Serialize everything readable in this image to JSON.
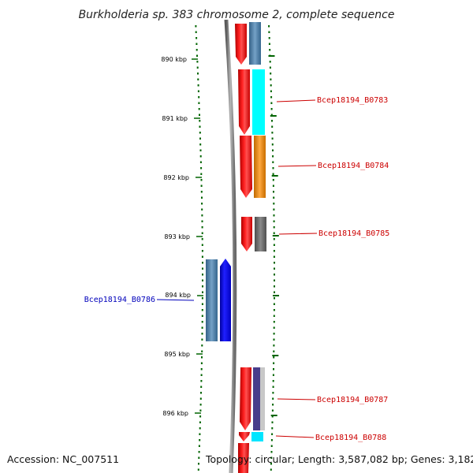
{
  "title": "Burkholderia sp. 383 chromosome 2, complete sequence",
  "scale": {
    "ticks": [
      {
        "label": "890 kbp"
      },
      {
        "label": "891 kbp"
      },
      {
        "label": "892 kbp"
      },
      {
        "label": "893 kbp"
      },
      {
        "label": "894 kbp"
      },
      {
        "label": "895 kbp"
      },
      {
        "label": "896 kbp"
      }
    ]
  },
  "genes": [
    {
      "locus": "Bcep18194_B0783",
      "strand": "forward",
      "cog_color": "#00ffff"
    },
    {
      "locus": "Bcep18194_B0784",
      "strand": "forward",
      "cog_color": "#ff8c00"
    },
    {
      "locus": "Bcep18194_B0785",
      "strand": "forward",
      "cog_color": "#666666"
    },
    {
      "locus": "Bcep18194_B0786",
      "strand": "reverse",
      "cog_color": "#4682b4"
    },
    {
      "locus": "Bcep18194_B0787",
      "strand": "forward",
      "cog_color": "#483d8b"
    },
    {
      "locus": "Bcep18194_B0788",
      "strand": "forward",
      "cog_color": "#00ffff"
    }
  ],
  "colors": {
    "forward_cds": "#ff0000",
    "reverse_cds": "#0000ff",
    "backbone": "#808080",
    "tick": "#006400",
    "forward_label": "#cc0000",
    "reverse_label": "#0000bb"
  },
  "footer": {
    "accession": "Accession: NC_007511",
    "summary": "Topology: circular; Length: 3,587,082 bp; Genes: 3,182"
  }
}
